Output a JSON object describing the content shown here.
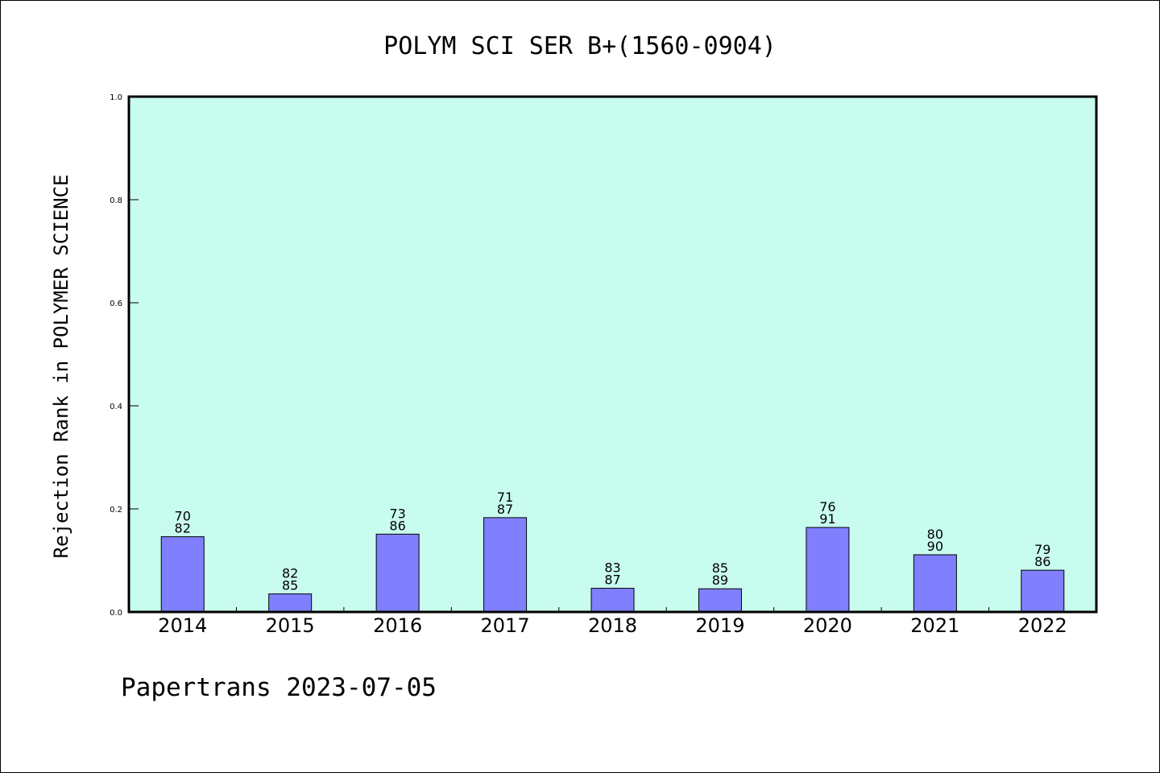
{
  "chart_data": {
    "type": "bar",
    "title": "POLYM SCI SER B+(1560-0904)",
    "ylabel": "Rejection Rank in POLYMER SCIENCE",
    "xlabel": "",
    "categories": [
      "2014",
      "2015",
      "2016",
      "2017",
      "2018",
      "2019",
      "2020",
      "2021",
      "2022"
    ],
    "values": [
      0.146,
      0.035,
      0.151,
      0.183,
      0.046,
      0.045,
      0.164,
      0.111,
      0.081
    ],
    "bar_labels": [
      [
        "70",
        "82"
      ],
      [
        "82",
        "85"
      ],
      [
        "73",
        "86"
      ],
      [
        "71",
        "87"
      ],
      [
        "83",
        "87"
      ],
      [
        "85",
        "89"
      ],
      [
        "76",
        "91"
      ],
      [
        "80",
        "90"
      ],
      [
        "79",
        "86"
      ]
    ],
    "ylim": [
      0,
      1.0
    ],
    "yticks": [
      "0.0",
      "0.2",
      "0.4",
      "0.6",
      "0.8",
      "1.0"
    ],
    "grid": false,
    "colors": {
      "plot_background": "#c8fcee",
      "bar": "#8080ff",
      "bar_edge": "#000000"
    }
  },
  "footer": {
    "text": "Papertrans 2023-07-05"
  }
}
